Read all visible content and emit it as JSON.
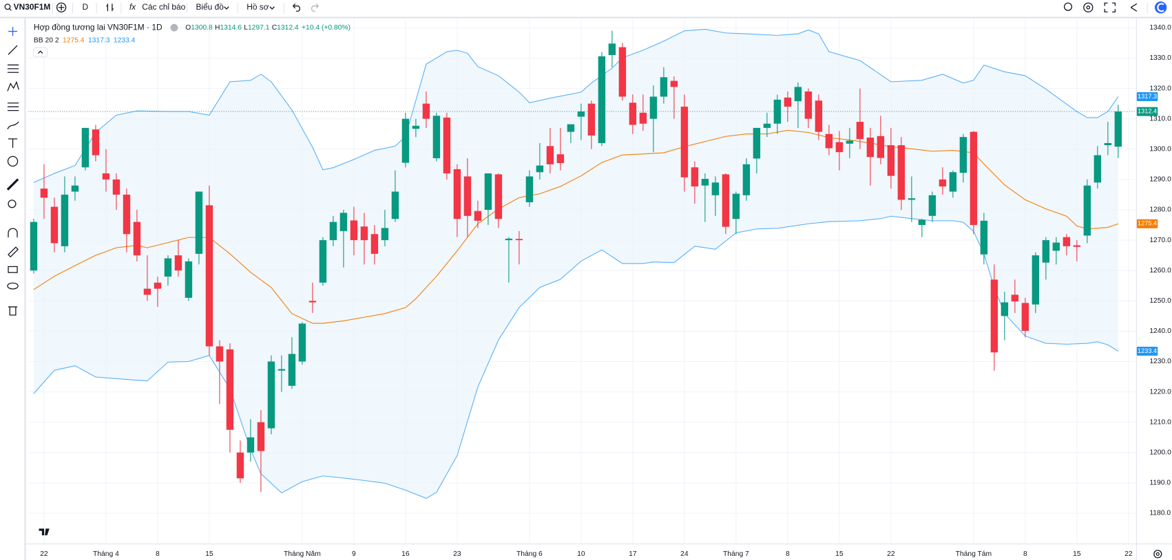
{
  "toolbar": {
    "symbol": "VN30F1M",
    "interval": "D",
    "indicators": "Các chỉ báo",
    "chart_menu": "Biểu đồ",
    "profile_menu": "Hồ sơ"
  },
  "chart_data": {
    "type": "candlestick",
    "title": "Hợp đồng tương lai VN30F1M · 1D",
    "ohlc_labels": [
      "O",
      "H",
      "L",
      "C"
    ],
    "change": "+10.4 (+0.80%)",
    "up_color": "#089981",
    "down_color": "#f23645",
    "grid": true,
    "ylim": [
      1170,
      1343
    ],
    "yticks": [
      {
        "value": 1180,
        "label": "1180.0"
      },
      {
        "value": 1190,
        "label": "1190.0"
      },
      {
        "value": 1200,
        "label": "1200.0"
      },
      {
        "value": 1210,
        "label": "1210.0"
      },
      {
        "value": 1220,
        "label": "1220.0"
      },
      {
        "value": 1230,
        "label": "1230.0"
      },
      {
        "value": 1240,
        "label": "1240.0"
      },
      {
        "value": 1250,
        "label": "1250.0"
      },
      {
        "value": 1260,
        "label": "1260.0"
      },
      {
        "value": 1270,
        "label": "1270.0"
      },
      {
        "value": 1280,
        "label": "1280.0"
      },
      {
        "value": 1290,
        "label": "1290.0"
      },
      {
        "value": 1300,
        "label": "1300.0"
      },
      {
        "value": 1310,
        "label": "1310.0"
      },
      {
        "value": 1320,
        "label": "1320.0"
      },
      {
        "value": 1330,
        "label": "1330.0"
      },
      {
        "value": 1340,
        "label": "1340.0"
      }
    ],
    "categories": [
      null,
      "22",
      null,
      null,
      null,
      null,
      null,
      "Tháng 4",
      null,
      null,
      null,
      null,
      "8",
      null,
      null,
      null,
      null,
      "15",
      null,
      null,
      null,
      null,
      null,
      null,
      null,
      null,
      "Tháng Năm",
      null,
      null,
      null,
      null,
      "9",
      null,
      null,
      null,
      null,
      "16",
      null,
      null,
      null,
      null,
      "23",
      null,
      null,
      null,
      null,
      null,
      null,
      "Tháng 6",
      null,
      null,
      null,
      null,
      "10",
      null,
      null,
      null,
      null,
      "17",
      null,
      null,
      null,
      null,
      "24",
      null,
      null,
      null,
      null,
      "Tháng 7",
      null,
      null,
      null,
      null,
      "8",
      null,
      null,
      null,
      null,
      "15",
      null,
      null,
      null,
      null,
      "22",
      null,
      null,
      null,
      null,
      null,
      null,
      null,
      "Tháng Tám",
      null,
      null,
      null,
      null,
      "8",
      null,
      null,
      null,
      null,
      "15",
      null,
      null,
      null,
      null,
      "22"
    ],
    "open": [
      1260,
      1287,
      1281,
      1268,
      1286,
      1294,
      1306.5,
      1292,
      1290,
      1285,
      1276,
      1254,
      1256,
      1258,
      1265,
      1251,
      1265.5,
      1281.5,
      1235,
      1234,
      1200,
      1200,
      1210,
      1208,
      1227,
      1222,
      1230,
      1250,
      1256,
      1270,
      1273,
      1276.5,
      1274.5,
      1272,
      1270,
      1277,
      1295.5,
      1306.7,
      1315,
      1297,
      1310.4,
      1293.4,
      1291,
      1279.6,
      1280,
      1291.7,
      1270,
      1270.4,
      1282.5,
      1292.4,
      1301,
      1298.3,
      1305.7,
      1310.7,
      1315,
      1302,
      1331,
      1333.6,
      1315.3,
      1312,
      1310,
      1317.3,
      1322.5,
      1314,
      1294,
      1288,
      1284.8,
      1291.7,
      1277,
      1284.8,
      1296.9,
      1307,
      1308.4,
      1317,
      1315.8,
      1319,
      1316,
      1305,
      1302.3,
      1301.8,
      1309,
      1303.8,
      1304.3,
      1301.3,
      1301.3,
      1283.3,
      1275,
      1278,
      1290,
      1286,
      1292.2,
      1305.7,
      1265.3,
      1257,
      1245,
      1252,
      1249.3,
      1248.8,
      1262.6,
      1266.5,
      1271,
      1268.3,
      1271.5,
      1289,
      1301.3,
      1300.8,
      null
    ],
    "high": [
      1277,
      1295,
      1284,
      1291,
      1291,
      1307,
      1308,
      1300,
      1292,
      1287,
      1280,
      1265,
      1258,
      1265,
      1270,
      1264,
      1286,
      1288,
      1237,
      1236,
      1204,
      1211,
      1214,
      1232,
      1232,
      1238,
      1243,
      1256,
      1271,
      1278,
      1280,
      1281,
      1279,
      1275,
      1280,
      1293,
      1312,
      1310,
      1319,
      1312,
      1312,
      1295,
      1297,
      1283,
      1292,
      1292,
      1271,
      1273,
      1293,
      1302,
      1307,
      1307,
      1308,
      1315,
      1316,
      1332,
      1339,
      1335,
      1318,
      1318,
      1321,
      1327,
      1324,
      1318,
      1296,
      1292,
      1291,
      1292,
      1286,
      1297,
      1307,
      1312,
      1318,
      1319,
      1322,
      1320,
      1318,
      1308,
      1306,
      1307,
      1320,
      1307,
      1311,
      1307,
      1304,
      1291,
      1277,
      1286,
      1294,
      1293,
      1305,
      1306,
      1279,
      1262,
      1253,
      1257,
      1251,
      1266,
      1271,
      1271,
      1272,
      1270,
      1290,
      1301,
      1309,
      1314.6,
      null
    ],
    "low": [
      1259,
      1277,
      1266,
      1266,
      1283,
      1293,
      1296,
      1286,
      1280,
      1266,
      1263,
      1250,
      1248,
      1255,
      1258,
      1250,
      1262,
      1232,
      1216,
      1200,
      1190,
      1197,
      1187,
      1206,
      1220,
      1221,
      1229,
      1246,
      1255,
      1268,
      1261,
      1265,
      1262,
      1262,
      1268,
      1276,
      1294,
      1304,
      1307,
      1296,
      1290,
      1271,
      1271,
      1274,
      1275,
      1274,
      1256,
      1262,
      1281,
      1290,
      1292,
      1293,
      1302,
      1303,
      1300,
      1301,
      1327,
      1316,
      1305,
      1306,
      1299,
      1315,
      1310,
      1286,
      1282,
      1276,
      1278,
      1272,
      1272,
      1283,
      1292,
      1304,
      1305,
      1309,
      1307,
      1307,
      1303,
      1298,
      1293,
      1297,
      1300,
      1288,
      1295,
      1287,
      1280,
      1276,
      1271,
      1276,
      1285,
      1284,
      1289,
      1272,
      1262,
      1227,
      1237,
      1246,
      1238,
      1246,
      1257,
      1262,
      1265,
      1263,
      1269,
      1287,
      1298,
      1297.1,
      null
    ],
    "close": [
      1276,
      1284,
      1269,
      1285,
      1288,
      1307,
      1298,
      1290,
      1285,
      1272,
      1265,
      1252,
      1254,
      1264,
      1260,
      1263,
      1286,
      1235,
      1230,
      1207.5,
      1191.5,
      1205,
      1200.5,
      1230,
      1227.5,
      1232.5,
      1242.5,
      1249.5,
      1270,
      1276,
      1279,
      1270,
      1270,
      1265.5,
      1274,
      1286,
      1310,
      1307.7,
      1310,
      1311,
      1292,
      1277,
      1278,
      1276.4,
      1292,
      1277,
      1270.5,
      1270,
      1291,
      1294.6,
      1295,
      1295.4,
      1308.2,
      1312.4,
      1304.5,
      1330.6,
      1334.8,
      1317.3,
      1308,
      1308.4,
      1317.3,
      1323.7,
      1320.5,
      1290.7,
      1287.7,
      1290.2,
      1289,
      1274.4,
      1285.3,
      1295,
      1307,
      1308.4,
      1316.3,
      1314,
      1320.5,
      1310,
      1305.7,
      1300.3,
      1299,
      1302.8,
      1303.3,
      1297.4,
      1297.1,
      1291.2,
      1283.3,
      1283.8,
      1276.7,
      1284.8,
      1287.7,
      1292.4,
      1304,
      1275,
      1276.4,
      1233,
      1249.5,
      1249.8,
      1240.1,
      1265,
      1270,
      1269.2,
      1268,
      1267.8,
      1288,
      1298,
      1302,
      1312.4,
      null
    ],
    "bollinger": {
      "label": "BB 20 2",
      "fill_color": "#eaf4fc",
      "basis": {
        "color": "#f57c00",
        "x": [
          0,
          2,
          4,
          6,
          8,
          10,
          11,
          13,
          15,
          17,
          19,
          21,
          23,
          25,
          27,
          28,
          30,
          32,
          34,
          36,
          37,
          39,
          41,
          43,
          45,
          47,
          49,
          51,
          53,
          55,
          57,
          59,
          61,
          63,
          65,
          67,
          69,
          71,
          73,
          75,
          77,
          79,
          81,
          83,
          85,
          87,
          89,
          91,
          92,
          94,
          96,
          98,
          100,
          101,
          102,
          104,
          105
        ],
        "values": [
          1253.7,
          1258.1,
          1261.6,
          1265,
          1267.5,
          1268.3,
          1267.5,
          1269.2,
          1270.9,
          1270.9,
          1265.5,
          1259.4,
          1254.4,
          1245.8,
          1242.6,
          1242.6,
          1243.4,
          1244.6,
          1245.8,
          1247.8,
          1250.7,
          1258.1,
          1266.5,
          1275.4,
          1280.3,
          1284,
          1285.3,
          1287.7,
          1291.2,
          1295.6,
          1298.1,
          1298.4,
          1298.8,
          1300.8,
          1302.5,
          1304.2,
          1305,
          1305,
          1306.2,
          1305.5,
          1303.8,
          1303,
          1302,
          1300.8,
          1300.1,
          1299.3,
          1299.6,
          1298.8,
          1295.1,
          1288.2,
          1283.3,
          1280.3,
          1277.9,
          1274.7,
          1273.7,
          1274.2,
          1275.4
        ]
      },
      "upper": {
        "color": "#2196f3",
        "x": [
          0,
          2,
          4,
          6,
          8,
          10,
          13,
          15,
          17,
          19,
          21,
          22,
          23,
          25,
          27,
          28,
          29,
          31,
          33,
          35,
          36,
          38,
          40,
          41,
          42,
          43,
          45,
          47,
          48,
          50,
          53,
          54,
          56,
          57,
          59,
          61,
          63,
          65,
          67,
          69,
          72,
          74,
          75,
          76,
          77,
          80,
          83,
          86,
          88,
          90,
          91,
          92,
          94,
          96,
          98,
          99,
          101,
          102,
          103,
          104,
          105
        ],
        "values": [
          1289,
          1292,
          1294.6,
          1305.5,
          1311.2,
          1312.6,
          1312.4,
          1312.4,
          1311.2,
          1322.2,
          1322.7,
          1324.7,
          1322.2,
          1312.9,
          1300.6,
          1293.2,
          1293.9,
          1296.6,
          1299.6,
          1301,
          1304.2,
          1328,
          1332.1,
          1332.6,
          1331.6,
          1327.2,
          1324.2,
          1318.8,
          1315.3,
          1316.8,
          1318.8,
          1321.8,
          1326.7,
          1330.1,
          1332.6,
          1335.6,
          1339,
          1339.5,
          1338.3,
          1338,
          1337.5,
          1338,
          1339.3,
          1338,
          1332.1,
          1329.2,
          1322.2,
          1322.7,
          1324.7,
          1321.8,
          1322.7,
          1327.7,
          1325.5,
          1324.2,
          1319.8,
          1317.3,
          1312.4,
          1310.4,
          1310.4,
          1312.4,
          1317.3
        ]
      },
      "lower": {
        "color": "#2196f3",
        "x": [
          0,
          2,
          4,
          6,
          9,
          11,
          13,
          15,
          17,
          19,
          20,
          21,
          22,
          24,
          26,
          28,
          30,
          32,
          34,
          36,
          38,
          39,
          41,
          43,
          45,
          47,
          49,
          51,
          53,
          55,
          57,
          59,
          60,
          62,
          64,
          66,
          68,
          70,
          72,
          75,
          77,
          80,
          82,
          83,
          85,
          87,
          89,
          90,
          91,
          92,
          93,
          94,
          96,
          98,
          100,
          102,
          103,
          104,
          105
        ],
        "values": [
          1219.4,
          1227.1,
          1228.6,
          1224.9,
          1224.1,
          1223.6,
          1229.8,
          1230,
          1232,
          1221,
          1211,
          1201,
          1193,
          1186.7,
          1190.4,
          1192.3,
          1191.6,
          1190.8,
          1189.9,
          1187.6,
          1184.9,
          1186.9,
          1199,
          1221.6,
          1237.1,
          1247.8,
          1254.4,
          1257.1,
          1263.1,
          1266.8,
          1262.3,
          1262.3,
          1262.8,
          1262.6,
          1268,
          1267,
          1272.4,
          1273.7,
          1273.9,
          1275.4,
          1276.1,
          1276.4,
          1277.1,
          1277.9,
          1277.1,
          1276.4,
          1276.4,
          1275.9,
          1272.9,
          1265.5,
          1254.4,
          1245.8,
          1238.4,
          1236,
          1235.7,
          1236,
          1236.5,
          1235.5,
          1233.4
        ]
      }
    }
  }
}
